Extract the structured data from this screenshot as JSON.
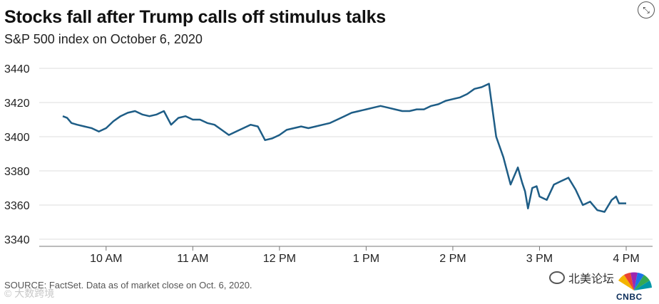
{
  "header": {
    "title": "Stocks fall after Trump calls off stimulus talks",
    "subtitle": "S&P 500 index on October 6, 2020"
  },
  "footer": {
    "source": "SOURCE: FactSet. Data as of market close on Oct. 6, 2020.",
    "watermark_left": "© 大数跨境",
    "wechat_label": "北美论坛",
    "logo_text": "CNBC"
  },
  "icons": {
    "expand": "expand-icon",
    "wechat": "wechat-icon",
    "logo": "cnbc-peacock-logo"
  },
  "colors": {
    "line": "#1e5d86",
    "grid": "#dddddd"
  },
  "chart_data": {
    "type": "line",
    "title": "Stocks fall after Trump calls off stimulus talks",
    "subtitle": "S&P 500 index on October 6, 2020",
    "xlabel": "",
    "ylabel": "",
    "ylim": [
      3340,
      3440
    ],
    "yticks": [
      3340,
      3360,
      3380,
      3400,
      3420,
      3440
    ],
    "xticks": [
      "10 AM",
      "11 AM",
      "12 PM",
      "1 PM",
      "2 PM",
      "3 PM",
      "4 PM"
    ],
    "grid": "horizontal",
    "legend": "none",
    "series": [
      {
        "x": [
          "9:30",
          "9:33",
          "9:36",
          "9:40",
          "9:45",
          "9:50",
          "9:55",
          "10:00",
          "10:05",
          "10:10",
          "10:15",
          "10:20",
          "10:25",
          "10:30",
          "10:35",
          "10:40",
          "10:45",
          "10:50",
          "10:55",
          "11:00",
          "11:05",
          "11:10",
          "11:15",
          "11:20",
          "11:25",
          "11:30",
          "11:35",
          "11:40",
          "11:45",
          "11:50",
          "11:55",
          "12:00",
          "12:05",
          "12:10",
          "12:15",
          "12:20",
          "12:25",
          "12:30",
          "12:35",
          "12:40",
          "12:45",
          "12:50",
          "12:55",
          "13:00",
          "13:05",
          "13:10",
          "13:15",
          "13:20",
          "13:25",
          "13:30",
          "13:35",
          "13:40",
          "13:45",
          "13:50",
          "13:55",
          "14:00",
          "14:05",
          "14:10",
          "14:15",
          "14:20",
          "14:25",
          "14:30",
          "14:35",
          "14:40",
          "14:45",
          "14:48",
          "14:50",
          "14:52",
          "14:55",
          "14:58",
          "15:00",
          "15:05",
          "15:10",
          "15:15",
          "15:20",
          "15:25",
          "15:30",
          "15:35",
          "15:40",
          "15:45",
          "15:50",
          "15:53",
          "15:55",
          "16:00"
        ],
        "values": [
          3412,
          3411,
          3408,
          3407,
          3406,
          3405,
          3403,
          3405,
          3409,
          3412,
          3414,
          3415,
          3413,
          3412,
          3413,
          3415,
          3407,
          3411,
          3412,
          3410,
          3410,
          3408,
          3407,
          3404,
          3401,
          3403,
          3405,
          3407,
          3406,
          3398,
          3399,
          3401,
          3404,
          3405,
          3406,
          3405,
          3406,
          3407,
          3408,
          3410,
          3412,
          3414,
          3415,
          3416,
          3417,
          3418,
          3417,
          3416,
          3415,
          3415,
          3416,
          3416,
          3418,
          3419,
          3421,
          3422,
          3423,
          3425,
          3428,
          3429,
          3431,
          3400,
          3388,
          3372,
          3382,
          3373,
          3368,
          3358,
          3370,
          3371,
          3365,
          3363,
          3372,
          3374,
          3376,
          3369,
          3360,
          3362,
          3357,
          3356,
          3363,
          3365,
          3361,
          3361
        ]
      }
    ]
  }
}
